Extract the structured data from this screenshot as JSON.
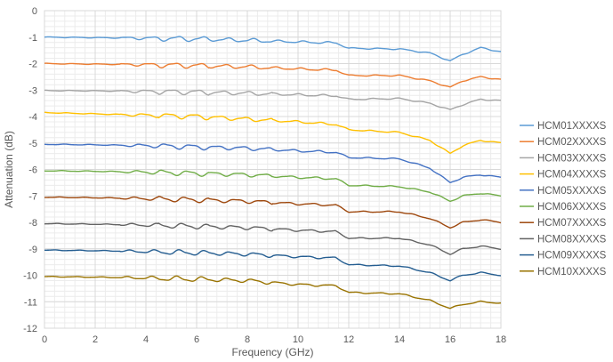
{
  "chart_data": {
    "type": "line",
    "title": "",
    "xlabel": "Frequency (GHz)",
    "ylabel": "Attenuation (dB)",
    "xlim": [
      0,
      18
    ],
    "ylim": [
      -12,
      0
    ],
    "xticks": [
      0,
      2,
      4,
      6,
      8,
      10,
      12,
      14,
      16,
      18
    ],
    "yticks": [
      0,
      -1,
      -2,
      -3,
      -4,
      -5,
      -6,
      -7,
      -8,
      -9,
      -10,
      -11,
      -12
    ],
    "grid": "major and minor",
    "legend": "right",
    "series": [
      {
        "name": "HCM01XXXXS",
        "color": "#5B9BD5",
        "x": [
          0,
          2,
          4,
          6,
          8,
          10,
          11.5,
          12,
          14,
          15.2,
          16,
          16.5,
          17.2,
          18
        ],
        "y": [
          -1.0,
          -1.02,
          -1.04,
          -1.07,
          -1.12,
          -1.18,
          -1.22,
          -1.42,
          -1.45,
          -1.6,
          -1.9,
          -1.65,
          -1.4,
          -1.55
        ]
      },
      {
        "name": "HCM02XXXXS",
        "color": "#ED7D31",
        "x": [
          0,
          2,
          4,
          6,
          8,
          10,
          11.5,
          12,
          14,
          15.2,
          16,
          16.5,
          17.2,
          18
        ],
        "y": [
          -2.0,
          -2.02,
          -2.04,
          -2.08,
          -2.12,
          -2.2,
          -2.25,
          -2.45,
          -2.45,
          -2.65,
          -2.9,
          -2.65,
          -2.5,
          -2.6
        ]
      },
      {
        "name": "HCM03XXXXS",
        "color": "#A5A5A5",
        "x": [
          0,
          2,
          4,
          6,
          8,
          10,
          11.5,
          12,
          14,
          15.2,
          16,
          16.5,
          17.2,
          18
        ],
        "y": [
          -3.02,
          -3.03,
          -3.05,
          -3.08,
          -3.12,
          -3.18,
          -3.22,
          -3.35,
          -3.32,
          -3.5,
          -3.75,
          -3.55,
          -3.35,
          -3.4
        ]
      },
      {
        "name": "HCM04XXXXS",
        "color": "#FFC000",
        "x": [
          0,
          2,
          4,
          6,
          8,
          10,
          11.5,
          12,
          14,
          15.2,
          16,
          16.5,
          17.2,
          18
        ],
        "y": [
          -3.85,
          -3.9,
          -3.95,
          -4.0,
          -4.1,
          -4.2,
          -4.3,
          -4.5,
          -4.6,
          -4.9,
          -5.4,
          -5.1,
          -4.9,
          -5.0
        ]
      },
      {
        "name": "HCM05XXXXS",
        "color": "#4472C4",
        "x": [
          0,
          2,
          4,
          6,
          8,
          10,
          11.5,
          12,
          14,
          15.2,
          16,
          16.5,
          17.2,
          18
        ],
        "y": [
          -5.05,
          -5.07,
          -5.1,
          -5.15,
          -5.2,
          -5.3,
          -5.35,
          -5.55,
          -5.6,
          -5.95,
          -6.5,
          -6.3,
          -6.2,
          -6.3
        ]
      },
      {
        "name": "HCM06XXXXS",
        "color": "#70AD47",
        "x": [
          0,
          2,
          4,
          6,
          8,
          10,
          11.5,
          12,
          14,
          15.2,
          16,
          16.5,
          17.2,
          18
        ],
        "y": [
          -6.05,
          -6.07,
          -6.1,
          -6.15,
          -6.2,
          -6.3,
          -6.35,
          -6.6,
          -6.65,
          -6.85,
          -7.2,
          -7.0,
          -6.9,
          -7.0
        ]
      },
      {
        "name": "HCM07XXXXS",
        "color": "#9E480E",
        "x": [
          0,
          2,
          4,
          6,
          8,
          10,
          11.5,
          12,
          14,
          15.2,
          16,
          16.5,
          17.2,
          18
        ],
        "y": [
          -7.05,
          -7.07,
          -7.1,
          -7.15,
          -7.2,
          -7.3,
          -7.35,
          -7.6,
          -7.6,
          -7.85,
          -8.2,
          -8.0,
          -7.9,
          -8.0
        ]
      },
      {
        "name": "HCM08XXXXS",
        "color": "#636363",
        "x": [
          0,
          2,
          4,
          6,
          8,
          10,
          11.5,
          12,
          14,
          15.2,
          16,
          16.5,
          17.2,
          18
        ],
        "y": [
          -8.05,
          -8.07,
          -8.1,
          -8.15,
          -8.2,
          -8.3,
          -8.35,
          -8.6,
          -8.6,
          -8.85,
          -9.2,
          -9.0,
          -8.9,
          -9.0
        ]
      },
      {
        "name": "HCM09XXXXS",
        "color": "#255E91",
        "x": [
          0,
          2,
          4,
          6,
          8,
          10,
          11.5,
          12,
          14,
          15.2,
          16,
          16.5,
          17.2,
          18
        ],
        "y": [
          -9.05,
          -9.07,
          -9.1,
          -9.15,
          -9.2,
          -9.3,
          -9.35,
          -9.6,
          -9.65,
          -9.9,
          -10.2,
          -10.0,
          -9.9,
          -10.0
        ]
      },
      {
        "name": "HCM10XXXXS",
        "color": "#997300",
        "x": [
          0,
          2,
          4,
          6,
          8,
          10,
          11.5,
          12,
          14,
          15.2,
          16,
          16.5,
          17.2,
          18
        ],
        "y": [
          -10.05,
          -10.07,
          -10.1,
          -10.15,
          -10.2,
          -10.35,
          -10.4,
          -10.65,
          -10.7,
          -10.95,
          -11.25,
          -11.1,
          -11.0,
          -11.05
        ]
      }
    ]
  }
}
